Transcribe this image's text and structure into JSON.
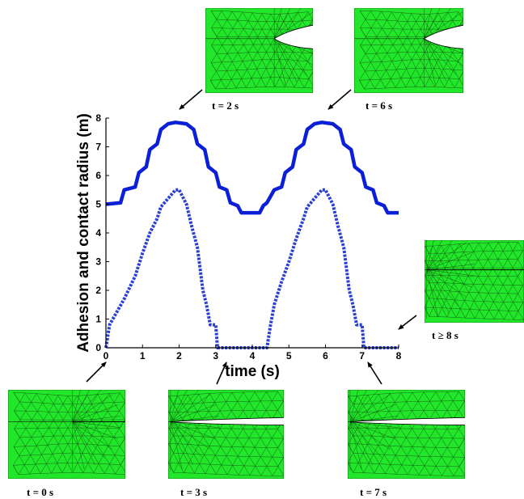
{
  "chart_data": {
    "type": "line",
    "xlabel": "time (s)",
    "ylabel": "Adhesion and contact radius (m)",
    "xlim": [
      0,
      8
    ],
    "ylim": [
      0,
      8
    ],
    "xticks": [
      "0",
      "1",
      "2",
      "3",
      "4",
      "5",
      "6",
      "7",
      "8"
    ],
    "yticks": [
      "0",
      "1",
      "2",
      "3",
      "4",
      "5",
      "6",
      "7",
      "8"
    ],
    "grid": false,
    "legend": "none",
    "series": [
      {
        "style": "solid",
        "color": "#0a1fd6",
        "x": [
          0,
          0.4,
          0.5,
          0.8,
          0.9,
          1.1,
          1.2,
          1.4,
          1.5,
          1.7,
          1.9,
          2.2,
          2.4,
          2.5,
          2.7,
          2.8,
          3.0,
          3.1,
          3.3,
          3.4,
          3.6,
          3.7,
          4.2,
          4.3,
          4.4,
          4.6,
          4.8,
          4.9,
          5.1,
          5.2,
          5.4,
          5.5,
          5.7,
          5.9,
          6.2,
          6.4,
          6.5,
          6.7,
          6.8,
          7.0,
          7.1,
          7.3,
          7.4,
          7.6,
          7.7,
          8.0
        ],
        "y": [
          5.0,
          5.05,
          5.5,
          5.6,
          6.1,
          6.3,
          6.9,
          7.1,
          7.6,
          7.8,
          7.85,
          7.8,
          7.6,
          7.1,
          6.9,
          6.3,
          6.1,
          5.6,
          5.5,
          5.05,
          4.95,
          4.7,
          4.7,
          4.95,
          5.05,
          5.5,
          5.6,
          6.1,
          6.3,
          6.9,
          7.1,
          7.6,
          7.8,
          7.85,
          7.8,
          7.6,
          7.1,
          6.9,
          6.3,
          6.1,
          5.6,
          5.5,
          5.05,
          4.95,
          4.7,
          4.7
        ]
      },
      {
        "style": "dotted",
        "color": "#2b3fd6",
        "x": [
          0,
          0.1,
          0.5,
          0.8,
          1.0,
          1.2,
          1.4,
          1.5,
          1.7,
          1.9,
          2.0,
          2.2,
          2.35,
          2.5,
          2.65,
          2.75,
          2.85,
          3.0,
          3.05,
          4.4,
          4.5,
          4.6,
          4.8,
          5.0,
          5.2,
          5.4,
          5.5,
          5.7,
          5.9,
          6.0,
          6.2,
          6.35,
          6.5,
          6.65,
          6.75,
          6.85,
          7.0,
          7.05,
          8.0
        ],
        "y": [
          0,
          0.8,
          1.7,
          2.5,
          3.3,
          4.0,
          4.5,
          4.9,
          5.2,
          5.5,
          5.5,
          5.0,
          4.2,
          3.5,
          2.0,
          1.5,
          0.8,
          0.8,
          0,
          0,
          0.8,
          1.5,
          2.3,
          3.0,
          3.8,
          4.5,
          4.9,
          5.2,
          5.5,
          5.5,
          5.0,
          4.2,
          3.5,
          2.0,
          1.5,
          0.8,
          0.8,
          0,
          0
        ]
      }
    ]
  },
  "snapshots": [
    {
      "id": "t0",
      "label": "t = 0 s",
      "gap": 0.0,
      "tip": 0.55
    },
    {
      "id": "t2",
      "label": "t = 2 s",
      "gap": 0.2,
      "tip": 0.64
    },
    {
      "id": "t3",
      "label": "t = 3 s",
      "gap": 0.06,
      "tip": 0.02
    },
    {
      "id": "t6",
      "label": "t = 6 s",
      "gap": 0.2,
      "tip": 0.64
    },
    {
      "id": "t7",
      "label": "t = 7 s",
      "gap": 0.06,
      "tip": 0.02
    },
    {
      "id": "t8",
      "label": "t ≥ 8 s",
      "gap": 0.0,
      "tip": 0.02
    }
  ],
  "colors": {
    "mesh_fill": "#22e629",
    "mesh_line": "#0d3a0d",
    "arrow": "#000000"
  }
}
